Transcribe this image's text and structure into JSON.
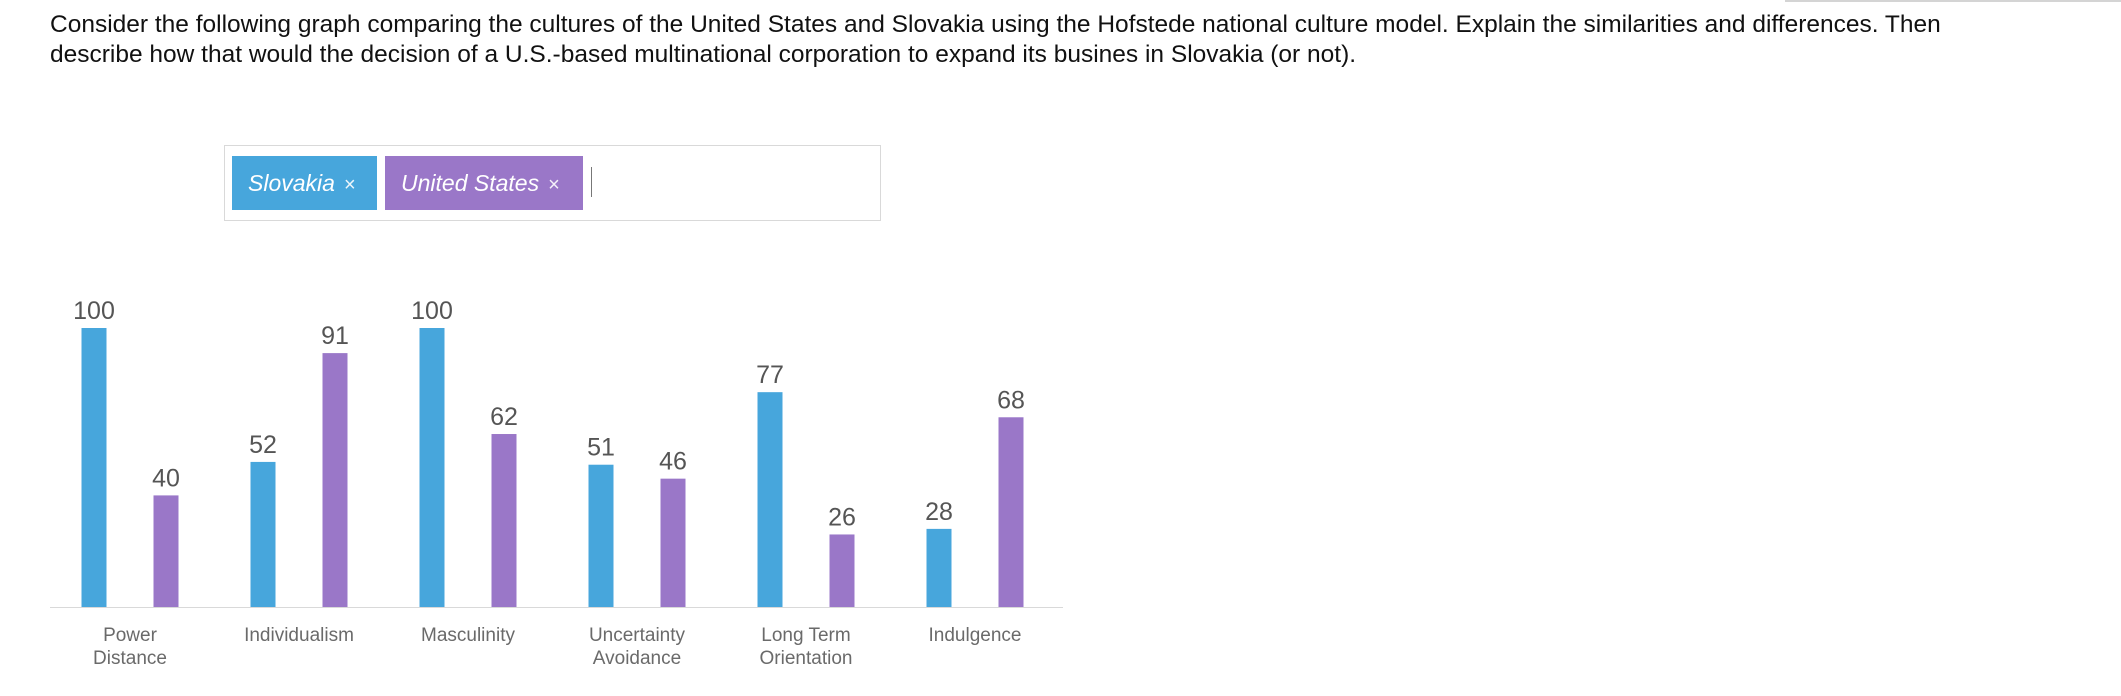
{
  "question": {
    "line1": "Consider the following graph comparing the cultures of the United States and Slovakia using the Hofstede national culture model. Explain the similarities and differences. Then",
    "line2": "describe how that would the decision of a U.S.-based multinational corporation to expand its busines in Slovakia (or not)."
  },
  "selector": {
    "tags": [
      {
        "label": "Slovakia",
        "remove": "×",
        "color": "#47a6dc"
      },
      {
        "label": "United States",
        "remove": "×",
        "color": "#9a77c8"
      }
    ]
  },
  "chart_data": {
    "type": "bar",
    "categories": [
      [
        "Power",
        "Distance"
      ],
      [
        "Individualism"
      ],
      [
        "Masculinity"
      ],
      [
        "Uncertainty",
        "Avoidance"
      ],
      [
        "Long Term",
        "Orientation"
      ],
      [
        "Indulgence"
      ]
    ],
    "series": [
      {
        "name": "Slovakia",
        "values": [
          100,
          52,
          100,
          51,
          77,
          28
        ],
        "color": "#47a6dc"
      },
      {
        "name": "United States",
        "values": [
          40,
          91,
          62,
          46,
          26,
          68
        ],
        "color": "#9a77c8"
      }
    ],
    "ylim": [
      0,
      100
    ],
    "grid": false,
    "data_labels": true
  }
}
